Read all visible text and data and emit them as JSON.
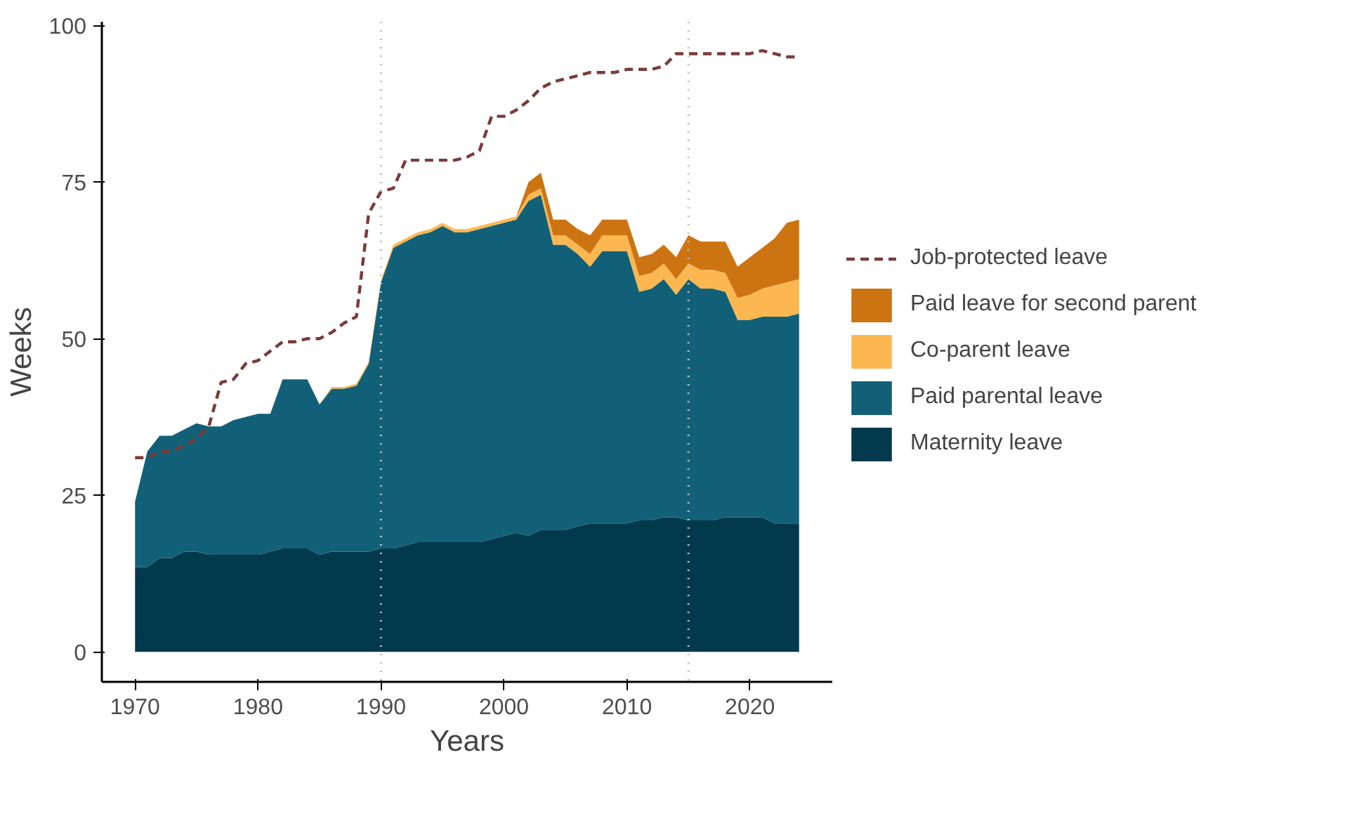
{
  "chart_data": {
    "type": "area",
    "stacked": true,
    "xlabel": "Years",
    "ylabel": "Weeks",
    "x": [
      1970,
      1971,
      1972,
      1973,
      1974,
      1975,
      1976,
      1977,
      1978,
      1979,
      1980,
      1981,
      1982,
      1983,
      1984,
      1985,
      1986,
      1987,
      1988,
      1989,
      1990,
      1991,
      1992,
      1993,
      1994,
      1995,
      1996,
      1997,
      1998,
      1999,
      2000,
      2001,
      2002,
      2003,
      2004,
      2005,
      2006,
      2007,
      2008,
      2009,
      2010,
      2011,
      2012,
      2013,
      2014,
      2015,
      2016,
      2017,
      2018,
      2019,
      2020,
      2021,
      2022,
      2023,
      2024
    ],
    "series": [
      {
        "name": "Maternity leave",
        "color": "#02394d",
        "values": [
          13.5,
          13.5,
          15,
          15,
          16,
          16,
          15.5,
          15.5,
          15.5,
          15.5,
          15.5,
          16,
          16.5,
          16.5,
          16.5,
          15.5,
          16,
          16,
          16,
          16,
          16.5,
          16.5,
          17,
          17.5,
          17.5,
          17.5,
          17.5,
          17.5,
          17.5,
          18,
          18.5,
          19,
          18.5,
          19.5,
          19.5,
          19.5,
          20,
          20.5,
          20.5,
          20.5,
          20.5,
          21,
          21,
          21.5,
          21.5,
          21,
          21,
          21,
          21.5,
          21.5,
          21.5,
          21.5,
          20.5,
          20.5,
          20.5
        ]
      },
      {
        "name": "Paid parental leave",
        "color": "#126078",
        "values": [
          10.5,
          18.5,
          19.5,
          19.5,
          19.5,
          20.5,
          20.5,
          20.5,
          21.5,
          22,
          22.5,
          22,
          27,
          27,
          27,
          24,
          26,
          26,
          26.5,
          30,
          42.5,
          48,
          48.5,
          49,
          49.5,
          50.5,
          49.5,
          49.5,
          50,
          50,
          50,
          50,
          53.5,
          53.5,
          45.5,
          45.5,
          43.5,
          41,
          43.5,
          43.5,
          43.5,
          36.5,
          37,
          38,
          35.5,
          38.5,
          37,
          37,
          36,
          31.5,
          31.5,
          32,
          33,
          33,
          33.5
        ]
      },
      {
        "name": "Co-parent leave",
        "color": "#fdb750",
        "values": [
          0,
          0,
          0,
          0,
          0,
          0,
          0,
          0,
          0,
          0,
          0,
          0,
          0,
          0,
          0,
          0,
          0.3,
          0.3,
          0.3,
          0.3,
          0.3,
          0.5,
          0.5,
          0.5,
          0.5,
          0.5,
          0.5,
          0.5,
          0.5,
          0.5,
          0.5,
          0.5,
          1,
          1,
          1.5,
          1.5,
          1.5,
          2,
          2.5,
          2.5,
          2.5,
          2.5,
          2.5,
          2.5,
          2.5,
          2.5,
          3,
          3,
          3,
          3.5,
          4,
          4.5,
          5,
          5.5,
          5.5
        ]
      },
      {
        "name": "Paid leave for second parent",
        "color": "#cc7412",
        "values": [
          0,
          0,
          0,
          0,
          0,
          0,
          0,
          0,
          0,
          0,
          0,
          0,
          0,
          0,
          0,
          0,
          0,
          0,
          0,
          0,
          0,
          0,
          0,
          0,
          0,
          0,
          0,
          0,
          0,
          0,
          0,
          0,
          2,
          2.5,
          2.5,
          2.5,
          2.5,
          3,
          2.5,
          2.5,
          2.5,
          3,
          3,
          3,
          3.5,
          4.5,
          4.5,
          4.5,
          5,
          5,
          6,
          6.5,
          7.5,
          9.5,
          9.5
        ]
      },
      {
        "name": "Job-protected leave",
        "type": "line",
        "line_style": "dashed",
        "color": "#7a3b3b",
        "values": [
          31,
          31,
          32,
          32,
          33,
          34,
          36,
          43,
          43.5,
          46,
          46.5,
          48,
          49.5,
          49.5,
          50,
          50,
          51,
          52.5,
          53.5,
          70,
          73.5,
          74,
          78.5,
          78.5,
          78.5,
          78.5,
          78.5,
          79,
          80,
          85.5,
          85.5,
          86.5,
          88,
          90,
          91,
          91.5,
          92,
          92.5,
          92.5,
          92.5,
          93,
          93,
          93,
          93.5,
          95.5,
          95.5,
          95.5,
          95.5,
          95.5,
          95.5,
          95.5,
          96,
          95.5,
          95,
          95
        ]
      }
    ],
    "xlim": [
      1967.3,
      2026.7
    ],
    "xticks": [
      1970,
      1980,
      1990,
      2000,
      2010,
      2020
    ],
    "ylim": [
      -4.8,
      100.6
    ],
    "yticks": [
      0,
      25,
      50,
      75,
      100
    ],
    "ref_lines": [
      {
        "axis": "x",
        "value": 1990,
        "color": "#c0c0c0",
        "line_style": "dotted"
      },
      {
        "axis": "x",
        "value": 2015,
        "color": "#c0c0c0",
        "line_style": "dotted"
      }
    ],
    "grid": false,
    "legend": "right"
  }
}
